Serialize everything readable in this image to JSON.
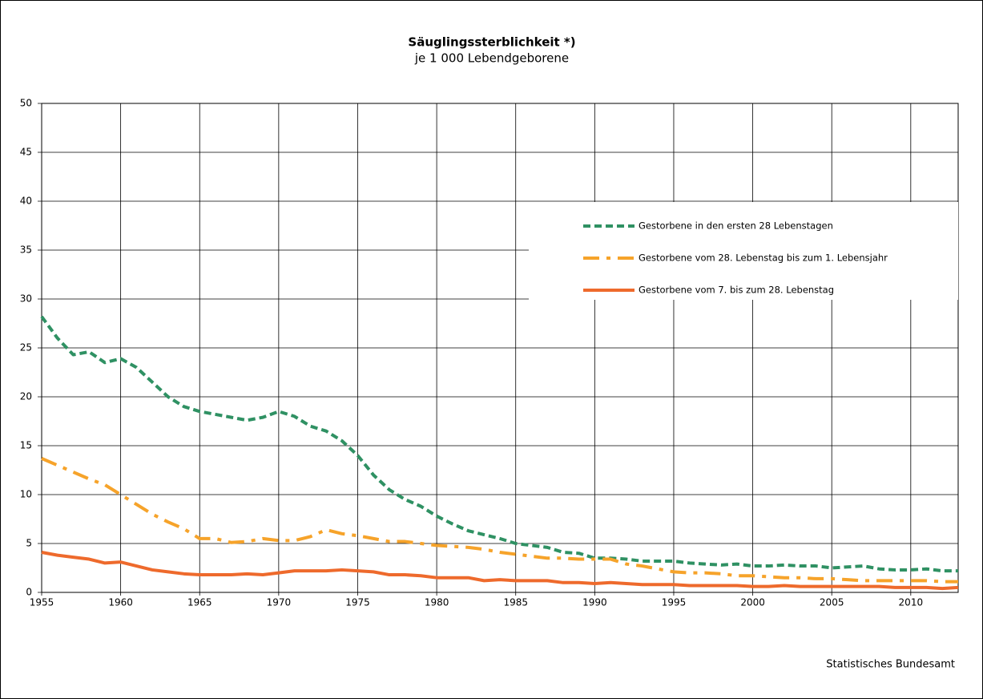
{
  "chart_data": {
    "type": "line",
    "title": "Säuglingssterblichkeit *)",
    "subtitle": "je 1 000 Lebendgeborene",
    "source": "Statistisches Bundesamt",
    "x": [
      1955,
      1956,
      1957,
      1958,
      1959,
      1960,
      1961,
      1962,
      1963,
      1964,
      1965,
      1966,
      1967,
      1968,
      1969,
      1970,
      1971,
      1972,
      1973,
      1974,
      1975,
      1976,
      1977,
      1978,
      1979,
      1980,
      1981,
      1982,
      1983,
      1984,
      1985,
      1986,
      1987,
      1988,
      1989,
      1990,
      1991,
      1992,
      1993,
      1994,
      1995,
      1996,
      1997,
      1998,
      1999,
      2000,
      2001,
      2002,
      2003,
      2004,
      2005,
      2006,
      2007,
      2008,
      2009,
      2010,
      2011,
      2012,
      2013
    ],
    "series": [
      {
        "name": "Gestorbene in den ersten 28 Lebenstagen",
        "color": "#2f9163",
        "dash": "dashed",
        "values": [
          28.2,
          26,
          24.3,
          24.6,
          23.5,
          23.9,
          23,
          21.5,
          20,
          19,
          18.5,
          18.2,
          17.9,
          17.6,
          17.9,
          18.5,
          18,
          17,
          16.5,
          15.5,
          14,
          12,
          10.5,
          9.5,
          8.8,
          7.8,
          7,
          6.3,
          5.9,
          5.5,
          5.0,
          4.8,
          4.6,
          4.1,
          4.0,
          3.5,
          3.5,
          3.4,
          3.2,
          3.2,
          3.2,
          3.0,
          2.9,
          2.8,
          2.9,
          2.7,
          2.7,
          2.8,
          2.7,
          2.7,
          2.5,
          2.6,
          2.7,
          2.4,
          2.3,
          2.3,
          2.4,
          2.2,
          2.2
        ]
      },
      {
        "name": "Gestorbene vom 28. Lebenstag bis zum 1. Lebensjahr",
        "color": "#f6a32a",
        "dash": "dashdot",
        "values": [
          13.7,
          13,
          12.3,
          11.6,
          11,
          10,
          9,
          8,
          7.2,
          6.5,
          5.5,
          5.5,
          5.1,
          5.2,
          5.5,
          5.3,
          5.3,
          5.7,
          6.4,
          6.0,
          5.8,
          5.5,
          5.2,
          5.2,
          5.0,
          4.8,
          4.7,
          4.6,
          4.4,
          4.1,
          3.9,
          3.7,
          3.5,
          3.5,
          3.4,
          3.4,
          3.4,
          2.9,
          2.7,
          2.4,
          2.1,
          2.0,
          2.0,
          1.9,
          1.7,
          1.7,
          1.6,
          1.5,
          1.5,
          1.4,
          1.4,
          1.3,
          1.2,
          1.2,
          1.2,
          1.2,
          1.2,
          1.1,
          1.1
        ]
      },
      {
        "name": "Gestorbene vom 7. bis zum 28. Lebenstag",
        "color": "#ee6a2c",
        "dash": "solid",
        "values": [
          4.1,
          3.8,
          3.6,
          3.4,
          3.0,
          3.1,
          2.7,
          2.3,
          2.1,
          1.9,
          1.8,
          1.8,
          1.8,
          1.9,
          1.8,
          2.0,
          2.2,
          2.2,
          2.2,
          2.3,
          2.2,
          2.1,
          1.8,
          1.8,
          1.7,
          1.5,
          1.5,
          1.5,
          1.2,
          1.3,
          1.2,
          1.2,
          1.2,
          1.0,
          1.0,
          0.9,
          1.0,
          0.9,
          0.8,
          0.8,
          0.8,
          0.7,
          0.7,
          0.7,
          0.7,
          0.6,
          0.6,
          0.7,
          0.6,
          0.6,
          0.6,
          0.6,
          0.6,
          0.6,
          0.5,
          0.5,
          0.5,
          0.4,
          0.5
        ]
      }
    ],
    "xlim": [
      1955,
      2013
    ],
    "xticks": [
      1955,
      1960,
      1965,
      1970,
      1975,
      1980,
      1985,
      1990,
      1995,
      2000,
      2005,
      2010
    ],
    "ylim": [
      0,
      50
    ],
    "yticks": [
      0,
      5,
      10,
      15,
      20,
      25,
      30,
      35,
      40,
      45,
      50
    ],
    "grid": true
  }
}
